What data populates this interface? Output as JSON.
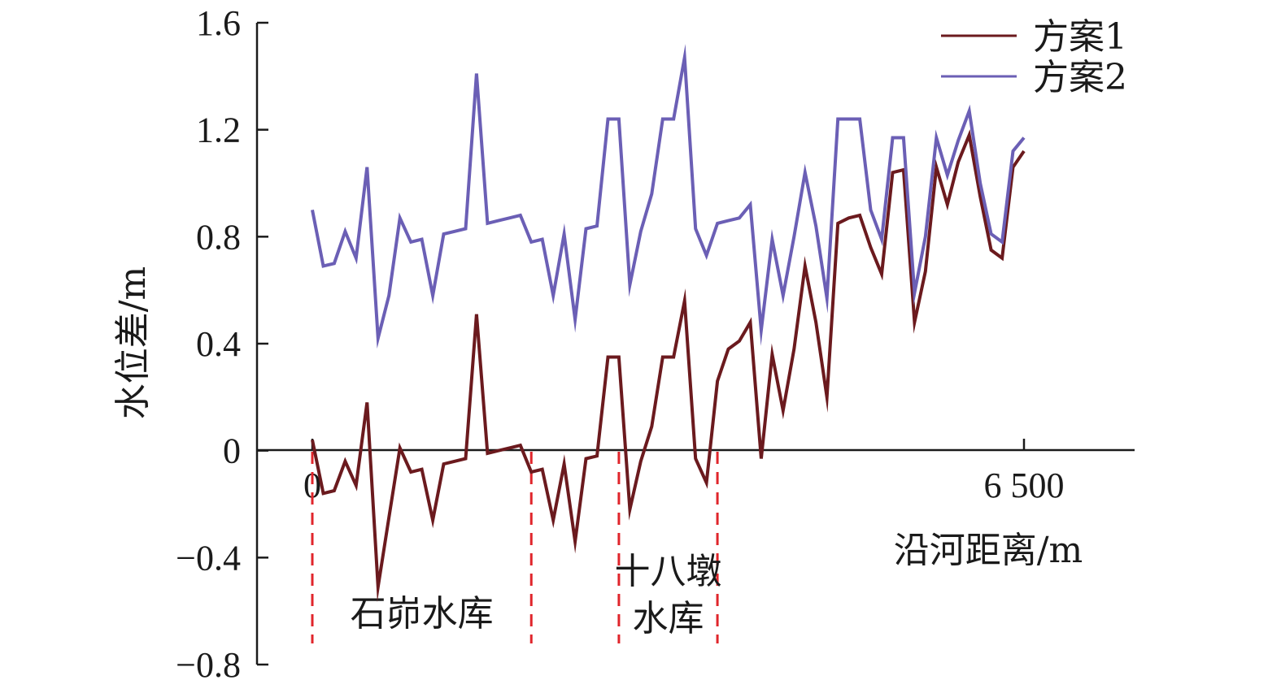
{
  "chart_data": {
    "type": "line",
    "ylabel": "水位差/m",
    "xlabel": "沿河距离/m",
    "ylim": [
      -0.8,
      1.6
    ],
    "xlim": [
      0,
      6500
    ],
    "yticks": [
      -0.8,
      -0.4,
      0,
      0.4,
      0.8,
      1.2,
      1.6
    ],
    "ytick_labels": [
      "−0.8",
      "−0.4",
      "0",
      "0.4",
      "0.8",
      "1.2",
      "1.6"
    ],
    "xtick_labels": [
      {
        "value": 0,
        "label": "0"
      },
      {
        "value": 6500,
        "label": "6 500"
      }
    ],
    "legend": {
      "position": "top-right"
    },
    "grid": false,
    "series": [
      {
        "name": "方案1",
        "color": "#6b1a1e",
        "x": [
          0,
          100,
          200,
          300,
          400,
          500,
          600,
          700,
          800,
          900,
          1000,
          1100,
          1200,
          1300,
          1400,
          1500,
          1600,
          1700,
          1800,
          1900,
          2000,
          2100,
          2200,
          2300,
          2400,
          2500,
          2600,
          2700,
          2800,
          2900,
          3000,
          3100,
          3200,
          3300,
          3400,
          3500,
          3600,
          3700,
          3800,
          3900,
          4000,
          4100,
          4200,
          4300,
          4400,
          4500,
          4600,
          4700,
          4800,
          4900,
          5000,
          5100,
          5200,
          5300,
          5400,
          5500,
          5600,
          5700,
          5800,
          5900,
          6000,
          6100,
          6200,
          6300,
          6400,
          6500
        ],
        "values": [
          0.04,
          -0.16,
          -0.15,
          -0.04,
          -0.13,
          0.18,
          -0.51,
          -0.25,
          0.01,
          -0.08,
          -0.07,
          -0.26,
          -0.05,
          -0.04,
          -0.03,
          0.51,
          -0.01,
          0.0,
          0.01,
          0.02,
          -0.08,
          -0.07,
          -0.26,
          -0.05,
          -0.34,
          -0.03,
          -0.02,
          0.35,
          0.35,
          -0.22,
          -0.04,
          0.09,
          0.35,
          0.35,
          0.56,
          -0.03,
          -0.12,
          0.26,
          0.38,
          0.41,
          0.48,
          -0.03,
          0.36,
          0.15,
          0.38,
          0.69,
          0.48,
          0.2,
          0.85,
          0.87,
          0.88,
          0.76,
          0.66,
          1.04,
          1.05,
          0.48,
          0.67,
          1.06,
          0.92,
          1.08,
          1.18,
          0.95,
          0.75,
          0.72,
          1.06,
          1.12
        ]
      },
      {
        "name": "方案2",
        "color": "#6b5fb5",
        "x": [
          0,
          100,
          200,
          300,
          400,
          500,
          600,
          700,
          800,
          900,
          1000,
          1100,
          1200,
          1300,
          1400,
          1500,
          1600,
          1700,
          1800,
          1900,
          2000,
          2100,
          2200,
          2300,
          2400,
          2500,
          2600,
          2700,
          2800,
          2900,
          3000,
          3100,
          3200,
          3300,
          3400,
          3500,
          3600,
          3700,
          3800,
          3900,
          4000,
          4100,
          4200,
          4300,
          4400,
          4500,
          4600,
          4700,
          4800,
          4900,
          5000,
          5100,
          5200,
          5300,
          5400,
          5500,
          5600,
          5700,
          5800,
          5900,
          6000,
          6100,
          6200,
          6300,
          6400,
          6500
        ],
        "values": [
          0.9,
          0.69,
          0.7,
          0.82,
          0.72,
          1.06,
          0.42,
          0.58,
          0.87,
          0.78,
          0.79,
          0.58,
          0.81,
          0.82,
          0.83,
          1.41,
          0.85,
          0.86,
          0.87,
          0.88,
          0.78,
          0.79,
          0.58,
          0.81,
          0.49,
          0.83,
          0.84,
          1.24,
          1.24,
          0.62,
          0.82,
          0.96,
          1.24,
          1.24,
          1.47,
          0.83,
          0.73,
          0.85,
          0.86,
          0.87,
          0.92,
          0.45,
          0.79,
          0.58,
          0.8,
          1.04,
          0.84,
          0.57,
          1.24,
          1.24,
          1.24,
          0.9,
          0.79,
          1.17,
          1.17,
          0.59,
          0.8,
          1.17,
          1.03,
          1.16,
          1.27,
          1.0,
          0.81,
          0.78,
          1.12,
          1.17
        ]
      }
    ],
    "annotations": [
      {
        "lines": [
          "石峁水库"
        ],
        "x_range": [
          0,
          2000
        ]
      },
      {
        "lines": [
          "十八墩",
          "水库"
        ],
        "x_range": [
          2800,
          3700
        ]
      }
    ]
  }
}
